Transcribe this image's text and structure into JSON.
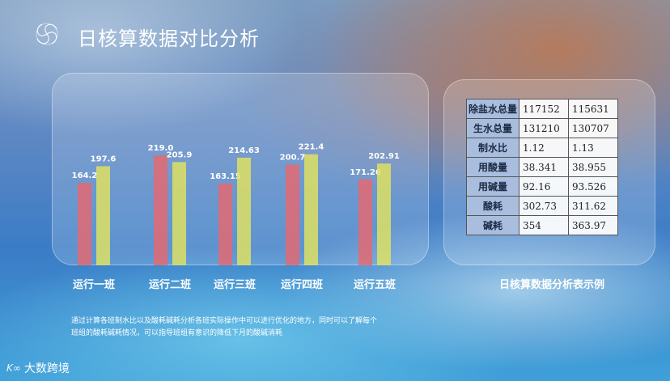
{
  "header": {
    "title": "日核算数据对比分析",
    "logo_icon": "swirl-logo-icon"
  },
  "chart_data": {
    "type": "bar",
    "categories": [
      "运行一班",
      "运行二班",
      "运行三班",
      "运行四班",
      "运行五班"
    ],
    "series": [
      {
        "values": [
          164.2,
          219.0,
          163.15,
          200.7,
          171.26
        ],
        "color": "#e8686e"
      },
      {
        "values": [
          197.6,
          205.9,
          214.63,
          221.4,
          202.91
        ],
        "color": "#e2e35e"
      }
    ],
    "value_labels": [
      [
        "164.2",
        "197.6"
      ],
      [
        "219.0",
        "205.9"
      ],
      [
        "163.15",
        "214.63"
      ],
      [
        "200.7",
        "221.4"
      ],
      [
        "171.26",
        "202.91"
      ]
    ],
    "title": "",
    "xlabel": "",
    "ylabel": "",
    "ylim": [
      0,
      240
    ],
    "grid": false
  },
  "table": {
    "caption": "日核算数据分析表示例",
    "rows": [
      {
        "label": "除盐水总量",
        "v1": "117152",
        "v2": "115631"
      },
      {
        "label": "生水总量",
        "v1": "131210",
        "v2": "130707"
      },
      {
        "label": "制水比",
        "v1": "1.12",
        "v2": "1.13"
      },
      {
        "label": "用酸量",
        "v1": "38.341",
        "v2": "38.955"
      },
      {
        "label": "用碱量",
        "v1": "92.16",
        "v2": "93.526"
      },
      {
        "label": "酸耗",
        "v1": "302.73",
        "v2": "311.62"
      },
      {
        "label": "碱耗",
        "v1": "354",
        "v2": "363.97"
      }
    ]
  },
  "description": {
    "line1": "通过计算各班制水比以及酸耗碱耗分析各班实际操作中可以进行优化的地方，同时可以了解每个",
    "line2": "班组的酸耗碱耗情况，可以指导班组有意识的降低下月的酸碱消耗"
  },
  "brand": {
    "mark": "K∞",
    "text": "大数跨境"
  }
}
